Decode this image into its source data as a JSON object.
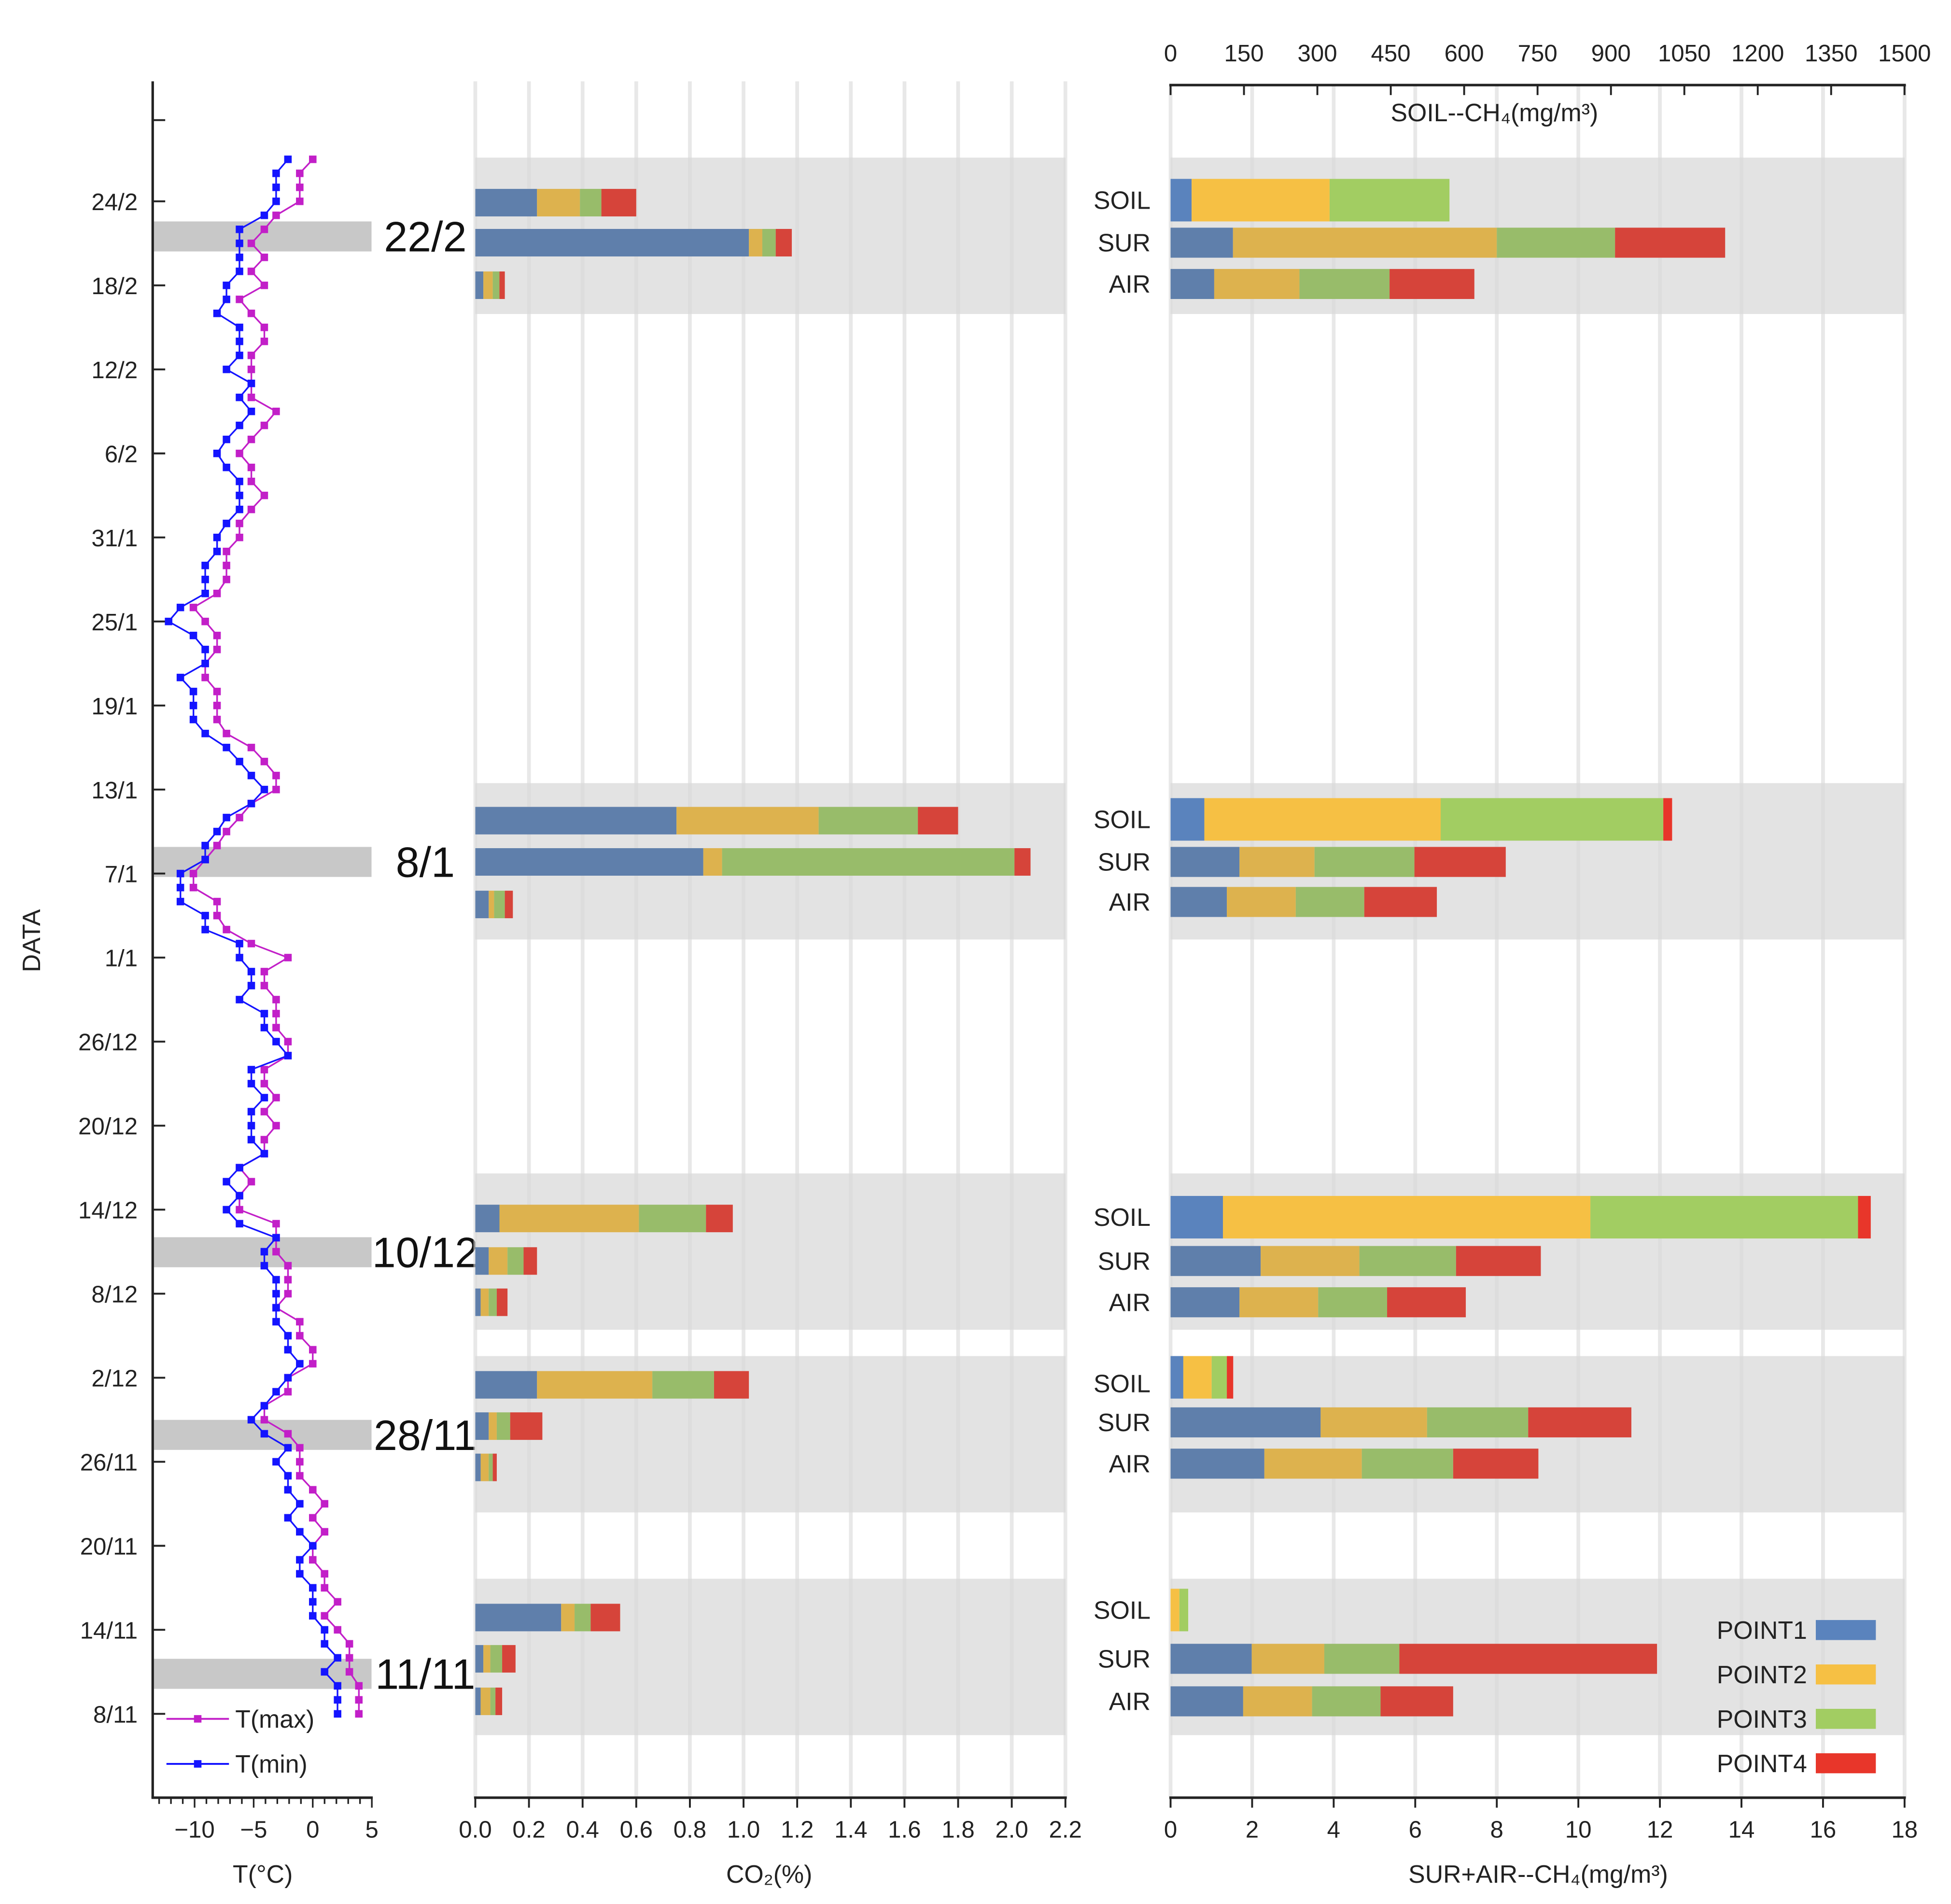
{
  "chart_data": [
    {
      "type": "line",
      "title": "",
      "xlabel": "T(°C)",
      "ylabel": "DATA",
      "xlim": [
        -13,
        5
      ],
      "xticks": [
        "−10",
        "−5",
        "0",
        "5"
      ],
      "xtick_values": [
        -10,
        -5,
        0,
        5
      ],
      "yticks": [
        "8/11",
        "14/11",
        "20/11",
        "26/11",
        "2/12",
        "8/12",
        "14/12",
        "20/12",
        "26/12",
        "1/1",
        "7/1",
        "13/1",
        "19/1",
        "25/1",
        "31/1",
        "6/2",
        "12/2",
        "18/2",
        "24/2"
      ],
      "x_start_date": "8/11",
      "x_step_days": 1,
      "highlight_dates": [
        "22/2",
        "8/1",
        "10/12",
        "28/11",
        "11/11"
      ],
      "legend": "bottom-left",
      "series": [
        {
          "name": "T(max)",
          "color": "#c21fc8",
          "values": [
            3.9,
            3.9,
            3.9,
            3.1,
            3.1,
            3.1,
            2.1,
            1.0,
            2.1,
            1.0,
            1.0,
            0,
            0,
            1.0,
            0,
            1.0,
            0,
            -1.1,
            -1.1,
            -1.1,
            -2.1,
            -4.1,
            -4.1,
            -2.1,
            -2.1,
            0,
            0,
            -1.1,
            -1.1,
            -3.1,
            -2.1,
            -2.1,
            -2.1,
            -3.1,
            -3.1,
            -3.1,
            -6.2,
            -6.2,
            -5.2,
            -6.2,
            -4.1,
            -4.1,
            -3.1,
            -4.1,
            -3.1,
            -4.1,
            -4.1,
            -2.1,
            -2.1,
            -3.1,
            -3.1,
            -3.1,
            -4.1,
            -4.1,
            -2.1,
            -5.2,
            -7.3,
            -8.1,
            -8.1,
            -10.1,
            -10.1,
            -9.1,
            -8.1,
            -7.3,
            -6.2,
            -5.2,
            -3.1,
            -3.1,
            -4.1,
            -5.2,
            -7.3,
            -8.1,
            -8.1,
            -8.1,
            -9.1,
            -9.1,
            -8.1,
            -8.1,
            -9.1,
            -10.1,
            -8.1,
            -7.3,
            -7.3,
            -7.3,
            -6.2,
            -6.2,
            -5.2,
            -4.1,
            -5.2,
            -5.2,
            -6.2,
            -5.2,
            -4.1,
            -3.1,
            -5.2,
            -5.2,
            -5.2,
            -5.2,
            -4.1,
            -4.1,
            -5.2,
            -6.2,
            -4.1,
            -5.2,
            -4.1,
            -5.2,
            -4.1,
            -3.1,
            -1.1,
            -1.1,
            -1.1,
            0
          ]
        },
        {
          "name": "T(min)",
          "color": "#1414ff",
          "values": [
            2.1,
            2.1,
            2.1,
            1.0,
            2.1,
            1.0,
            1.0,
            0,
            0,
            0,
            -1.1,
            -1.1,
            0,
            -1.1,
            -2.1,
            -1.1,
            -2.1,
            -2.1,
            -3.1,
            -2.1,
            -4.1,
            -5.2,
            -4.1,
            -3.1,
            -2.1,
            -1.1,
            -2.1,
            -2.1,
            -3.1,
            -3.1,
            -3.1,
            -3.1,
            -4.1,
            -4.1,
            -3.1,
            -6.2,
            -7.3,
            -6.2,
            -7.3,
            -6.2,
            -4.1,
            -5.2,
            -5.2,
            -5.2,
            -4.1,
            -5.2,
            -5.2,
            -2.1,
            -3.1,
            -4.1,
            -4.1,
            -6.2,
            -5.2,
            -5.2,
            -6.2,
            -6.2,
            -9.1,
            -9.1,
            -11.2,
            -11.2,
            -11.2,
            -9.1,
            -9.1,
            -8.1,
            -7.3,
            -5.2,
            -4.1,
            -5.2,
            -6.2,
            -7.3,
            -9.1,
            -10.1,
            -10.1,
            -10.1,
            -11.2,
            -9.1,
            -9.1,
            -10.1,
            -12.2,
            -11.2,
            -9.1,
            -9.1,
            -9.1,
            -8.1,
            -8.1,
            -7.3,
            -6.2,
            -6.2,
            -6.2,
            -7.3,
            -8.1,
            -7.3,
            -6.2,
            -5.2,
            -6.2,
            -5.2,
            -7.3,
            -6.2,
            -6.2,
            -6.2,
            -8.1,
            -7.3,
            -7.3,
            -6.2,
            -6.2,
            -6.2,
            -6.2,
            -4.1,
            -3.1,
            -3.1,
            -3.1,
            -2.1
          ]
        }
      ]
    },
    {
      "type": "bar",
      "orientation": "horizontal-stacked",
      "xlabel": "CO₂(%)",
      "xlim": [
        0,
        2.2
      ],
      "xticks": [
        "0.0",
        "0.2",
        "0.4",
        "0.6",
        "0.8",
        "1.0",
        "1.2",
        "1.4",
        "1.6",
        "1.8",
        "2.0",
        "2.2"
      ],
      "grid": true,
      "groups": [
        {
          "date": "22/2",
          "rows": {
            "SOIL": [
              0.23,
              0.16,
              0.08,
              0.13
            ],
            "SUR": [
              1.02,
              0.05,
              0.05,
              0.06
            ],
            "AIR": [
              0.03,
              0.035,
              0.025,
              0.02
            ]
          }
        },
        {
          "date": "8/1",
          "rows": {
            "SOIL": [
              0.75,
              0.53,
              0.37,
              0.15
            ],
            "SUR": [
              0.85,
              0.07,
              1.09,
              0.06
            ],
            "AIR": [
              0.05,
              0.02,
              0.04,
              0.03
            ]
          }
        },
        {
          "date": "10/12",
          "rows": {
            "SOIL": [
              0.09,
              0.52,
              0.25,
              0.1
            ],
            "SUR": [
              0.05,
              0.07,
              0.06,
              0.05
            ],
            "AIR": [
              0.02,
              0.03,
              0.03,
              0.04
            ]
          }
        },
        {
          "date": "28/11",
          "rows": {
            "SOIL": [
              0.23,
              0.43,
              0.23,
              0.13
            ],
            "SUR": [
              0.05,
              0.03,
              0.05,
              0.12
            ],
            "AIR": [
              0.02,
              0.03,
              0.015,
              0.015
            ]
          }
        },
        {
          "date": "11/11",
          "rows": {
            "SOIL": [
              0.32,
              0.05,
              0.06,
              0.11
            ],
            "SUR": [
              0.03,
              0.026,
              0.044,
              0.05
            ],
            "AIR": [
              0.02,
              0.036,
              0.019,
              0.025
            ]
          }
        }
      ]
    },
    {
      "type": "bar",
      "orientation": "horizontal-stacked",
      "xlabel_top": "SOIL--CH₄(mg/m³)",
      "xlabel_bottom": "SUR+AIR--CH₄(mg/m³)",
      "xlim_top": [
        0,
        1500
      ],
      "xlim_bottom": [
        0,
        18
      ],
      "xticks_top": [
        "0",
        "150",
        "300",
        "450",
        "600",
        "750",
        "900",
        "1050",
        "1200",
        "1350",
        "1500"
      ],
      "xticks_bottom": [
        "0",
        "2",
        "4",
        "6",
        "8",
        "10",
        "12",
        "14",
        "16",
        "18"
      ],
      "row_labels": [
        "SOIL",
        "SUR",
        "AIR"
      ],
      "legend": "bottom-right",
      "legend_labels": [
        "POINT1",
        "POINT2",
        "POINT3",
        "POINT4"
      ],
      "colors_soil": [
        "#5a83bd",
        "#f6c044",
        "#a2cd62",
        "#e8362a"
      ],
      "colors_other": [
        "#5f7fab",
        "#ddb24e",
        "#98bc6a",
        "#d6443a"
      ],
      "groups": [
        {
          "date": "22/2",
          "rows": {
            "SOIL": [
              43,
              282,
              245,
              0
            ],
            "SUR": [
              1.53,
              6.47,
              2.9,
              2.7
            ],
            "AIR": [
              1.07,
              2.09,
              2.21,
              2.08
            ]
          }
        },
        {
          "date": "8/1",
          "rows": {
            "SOIL": [
              69,
              483,
              455,
              18
            ],
            "SUR": [
              1.69,
              1.84,
              2.45,
              2.24
            ],
            "AIR": [
              1.38,
              1.69,
              1.68,
              1.78
            ]
          }
        },
        {
          "date": "10/12",
          "rows": {
            "SOIL": [
              107,
              751,
              547,
              26
            ],
            "SUR": [
              2.21,
              2.42,
              2.37,
              2.08
            ],
            "AIR": [
              1.69,
              1.93,
              1.69,
              1.93
            ]
          }
        },
        {
          "date": "28/11",
          "rows": {
            "SOIL": [
              26,
              58,
              31,
              13
            ],
            "SUR": [
              3.68,
              2.61,
              2.48,
              2.53
            ],
            "AIR": [
              2.3,
              2.39,
              2.24,
              2.09
            ]
          }
        },
        {
          "date": "11/11",
          "rows": {
            "SOIL": [
              0,
              18,
              18,
              0
            ],
            "SUR": [
              1.99,
              1.78,
              1.84,
              6.32
            ],
            "AIR": [
              1.78,
              1.69,
              1.68,
              1.78
            ]
          }
        }
      ]
    }
  ]
}
